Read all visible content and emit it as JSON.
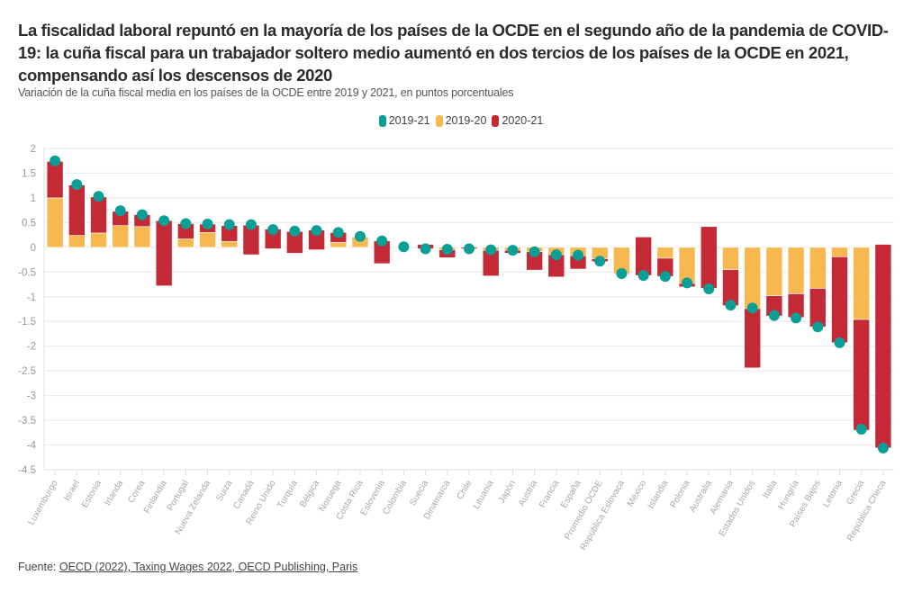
{
  "header": {
    "title": "La fiscalidad laboral repuntó en la mayoría de los países de la OCDE en el segundo año de la pandemia de COVID-19: la cuña fiscal para un trabajador soltero medio aumentó en dos tercios de los países de la OCDE en 2021, compensando así los descensos de 2020",
    "subtitle": "Variación de la cuña fiscal media en los países de la OCDE entre 2019 y 2021, en puntos porcentuales"
  },
  "legend": [
    {
      "label": "2019-21",
      "color": "#0a9f96"
    },
    {
      "label": "2019-20",
      "color": "#f7b84f"
    },
    {
      "label": "2020-21",
      "color": "#c32a35"
    }
  ],
  "source": {
    "prefix": "Fuente: ",
    "link_text": "OECD (2022), Taxing Wages 2022, OECD Publishing, Paris"
  },
  "chart_data": {
    "type": "bar",
    "subtype": "stacked bar (2019-20, 2020-21) with dot (2019-21)",
    "title": "La fiscalidad laboral repuntó en la mayoría de los países de la OCDE en el segundo año de la pandemia de COVID-19",
    "xlabel": "",
    "ylabel": "",
    "ylim": [
      -4.5,
      2
    ],
    "yticks": [
      2,
      1.5,
      1,
      0.5,
      0,
      -0.5,
      -1,
      -1.5,
      -2,
      -2.5,
      -3,
      -3.5,
      -4,
      -4.5
    ],
    "ytick_labels": [
      "2",
      "1.5",
      "1",
      "0.5",
      "0",
      "-0.5",
      "-1",
      "-1.5",
      "-2",
      "-2.5",
      "-3",
      "-3.5",
      "-4",
      "-4.5"
    ],
    "grid": true,
    "legend_position": "top-center",
    "categories": [
      "Luxemburgo",
      "Israel",
      "Estonia",
      "Irlanda",
      "Corea",
      "Finlandia",
      "Portugal",
      "Nueva Zelanda",
      "Suiza",
      "Canadá",
      "Reino Unido",
      "Turquía",
      "Bélgica",
      "Noruega",
      "Costa Rica",
      "Eslovenia",
      "Colombia",
      "Suecia",
      "Dinamarca",
      "Chile",
      "Lituania",
      "Japón",
      "Austria",
      "Francia",
      "España",
      "Promedio OCDE",
      "República Eslovaca",
      "México",
      "Islandia",
      "Polonia",
      "Australia",
      "Alemania",
      "Estados Unidos",
      "Italia",
      "Hungría",
      "Países Bajos",
      "Letonia",
      "Grecia",
      "República Checa"
    ],
    "series": [
      {
        "name": "2019-20",
        "kind": "bar",
        "color": "#f7b84f",
        "values": [
          1.0,
          0.24,
          0.29,
          0.44,
          0.42,
          -0.78,
          0.17,
          0.3,
          0.12,
          -0.15,
          -0.03,
          -0.12,
          -0.05,
          0.1,
          0.21,
          -0.33,
          0.0,
          0.06,
          -0.21,
          0.0,
          -0.58,
          -0.12,
          -0.46,
          -0.6,
          -0.44,
          -0.23,
          -0.54,
          0.21,
          -0.22,
          -0.8,
          0.42,
          -0.45,
          -2.44,
          -0.98,
          -0.94,
          -0.83,
          -0.19,
          -1.46,
          0.06
        ]
      },
      {
        "name": "2020-21",
        "kind": "bar",
        "color": "#c32a35",
        "values": [
          0.74,
          1.02,
          0.73,
          0.29,
          0.24,
          1.32,
          0.31,
          0.17,
          0.32,
          0.6,
          0.4,
          0.44,
          0.4,
          0.2,
          0.0,
          0.46,
          0.0,
          -0.09,
          0.16,
          -0.03,
          0.52,
          0.06,
          0.37,
          0.45,
          0.27,
          -0.06,
          0.01,
          -0.78,
          -0.37,
          0.07,
          -1.25,
          -0.73,
          1.2,
          -0.41,
          -0.48,
          -0.78,
          -1.74,
          -2.24,
          -4.12
        ]
      },
      {
        "name": "2019-21",
        "kind": "dot",
        "color": "#0a9f96",
        "values": [
          1.75,
          1.27,
          1.03,
          0.74,
          0.66,
          0.54,
          0.48,
          0.47,
          0.46,
          0.46,
          0.36,
          0.33,
          0.34,
          0.3,
          0.22,
          0.13,
          0.01,
          -0.03,
          -0.04,
          -0.03,
          -0.05,
          -0.06,
          -0.09,
          -0.15,
          -0.16,
          -0.28,
          -0.53,
          -0.57,
          -0.59,
          -0.72,
          -0.84,
          -1.17,
          -1.23,
          -1.38,
          -1.43,
          -1.61,
          -1.93,
          -3.68,
          -4.06
        ]
      }
    ]
  }
}
